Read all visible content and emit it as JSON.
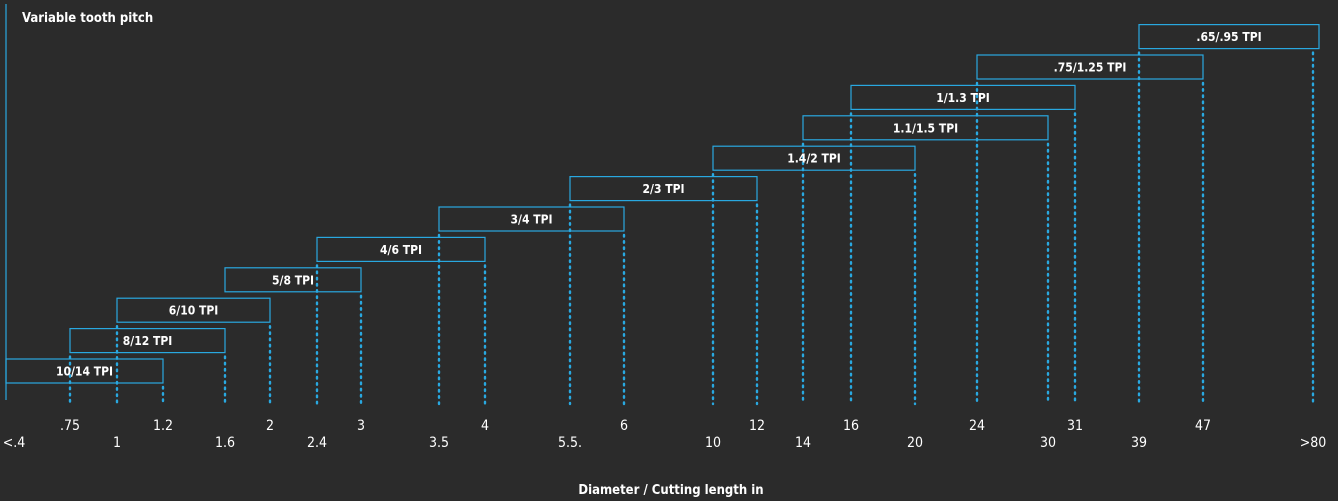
{
  "chart_data": {
    "type": "bar",
    "title": "Variable tooth pitch",
    "xlabel": "Diameter / Cutting length in",
    "ylabel": "",
    "colors": {
      "background": "#2b2b2b",
      "accent": "#29a8e0",
      "text": "#ffffff"
    },
    "x_ticks": [
      "<.4",
      ".75",
      "1",
      "1.2",
      "1.6",
      "2",
      "2.4",
      "3",
      "3.5",
      "4",
      "5.5.",
      "6",
      "10",
      "12",
      "14",
      "16",
      "20",
      "24",
      "30",
      "31",
      "39",
      "47",
      ">80"
    ],
    "series": [
      {
        "name": "10/14 TPI",
        "start": "<.4",
        "end": "1.2"
      },
      {
        "name": "8/12 TPI",
        "start": ".75",
        "end": "1.6"
      },
      {
        "name": "6/10 TPI",
        "start": "1",
        "end": "2"
      },
      {
        "name": "5/8 TPI",
        "start": "1.6",
        "end": "3"
      },
      {
        "name": "4/6 TPI",
        "start": "2.4",
        "end": "4"
      },
      {
        "name": "3/4 TPI",
        "start": "3.5",
        "end": "6"
      },
      {
        "name": "2/3 TPI",
        "start": "5.5.",
        "end": "12"
      },
      {
        "name": "1.4/2 TPI",
        "start": "10",
        "end": "20"
      },
      {
        "name": "1.1/1.5 TPI",
        "start": "14",
        "end": "30"
      },
      {
        "name": "1/1.3 TPI",
        "start": "16",
        "end": "31"
      },
      {
        "name": ".75/1.25 TPI",
        "start": "24",
        "end": "47"
      },
      {
        "name": ".65/.95 TPI",
        "start": "39",
        "end": ">80"
      }
    ]
  }
}
